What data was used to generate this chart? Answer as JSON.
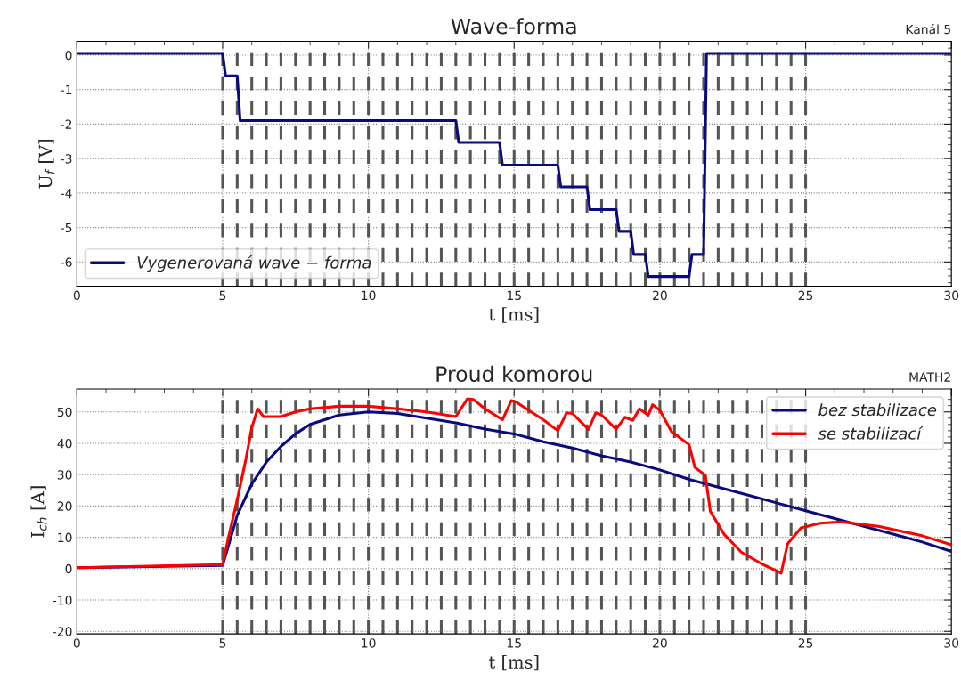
{
  "chart_data": [
    {
      "type": "line",
      "title": "Wave-forma",
      "xlabel": "t [ms]",
      "ylabel": "U$_{f}$ [V]",
      "annotations": [
        "Kanál 5"
      ],
      "xlim": [
        0,
        30
      ],
      "xticks": [
        0,
        5,
        10,
        15,
        20,
        25,
        30
      ],
      "ylim": [
        -6.7,
        0.4
      ],
      "yticks": [
        -6,
        -5,
        -4,
        -3,
        -2,
        -1,
        0
      ],
      "grid": true,
      "legend": "bottom left",
      "series": [
        {
          "name": "Vygenerovaná wave − forma",
          "color": "#0a0a80",
          "x": [
            0,
            5.0,
            5.1,
            5.5,
            5.6,
            13.0,
            13.1,
            14.5,
            14.6,
            16.5,
            16.6,
            17.5,
            17.6,
            18.5,
            18.6,
            19.0,
            19.1,
            19.5,
            19.6,
            21.0,
            21.1,
            21.5,
            21.6,
            30
          ],
          "values": [
            0.05,
            0.05,
            -0.6,
            -0.6,
            -1.9,
            -1.9,
            -2.53,
            -2.53,
            -3.19,
            -3.19,
            -3.82,
            -3.82,
            -4.48,
            -4.48,
            -5.11,
            -5.11,
            -5.78,
            -5.78,
            -6.42,
            -6.42,
            -5.78,
            -5.78,
            0.05,
            0.05
          ]
        }
      ],
      "ref_lines": [
        {
          "axis": "x",
          "value": 5.0,
          "color": "#555555",
          "line_style": "dashed"
        },
        {
          "axis": "x",
          "value": 5.5,
          "color": "#555555",
          "line_style": "dashed"
        },
        {
          "axis": "x",
          "value": 6.0,
          "color": "#555555",
          "line_style": "dashed"
        },
        {
          "axis": "x",
          "value": 6.5,
          "color": "#555555",
          "line_style": "dashed"
        },
        {
          "axis": "x",
          "value": 7.0,
          "color": "#555555",
          "line_style": "dashed"
        },
        {
          "axis": "x",
          "value": 7.5,
          "color": "#555555",
          "line_style": "dashed"
        },
        {
          "axis": "x",
          "value": 8.0,
          "color": "#555555",
          "line_style": "dashed"
        },
        {
          "axis": "x",
          "value": 8.5,
          "color": "#555555",
          "line_style": "dashed"
        },
        {
          "axis": "x",
          "value": 9.0,
          "color": "#555555",
          "line_style": "dashed"
        },
        {
          "axis": "x",
          "value": 9.5,
          "color": "#555555",
          "line_style": "dashed"
        },
        {
          "axis": "x",
          "value": 10.0,
          "color": "#555555",
          "line_style": "dashed"
        },
        {
          "axis": "x",
          "value": 10.5,
          "color": "#555555",
          "line_style": "dashed"
        },
        {
          "axis": "x",
          "value": 11.0,
          "color": "#555555",
          "line_style": "dashed"
        },
        {
          "axis": "x",
          "value": 11.5,
          "color": "#555555",
          "line_style": "dashed"
        },
        {
          "axis": "x",
          "value": 12.0,
          "color": "#555555",
          "line_style": "dashed"
        },
        {
          "axis": "x",
          "value": 12.5,
          "color": "#555555",
          "line_style": "dashed"
        },
        {
          "axis": "x",
          "value": 13.0,
          "color": "#555555",
          "line_style": "dashed"
        },
        {
          "axis": "x",
          "value": 13.5,
          "color": "#555555",
          "line_style": "dashed"
        },
        {
          "axis": "x",
          "value": 14.0,
          "color": "#555555",
          "line_style": "dashed"
        },
        {
          "axis": "x",
          "value": 14.5,
          "color": "#555555",
          "line_style": "dashed"
        },
        {
          "axis": "x",
          "value": 15.0,
          "color": "#555555",
          "line_style": "dashed"
        },
        {
          "axis": "x",
          "value": 15.5,
          "color": "#555555",
          "line_style": "dashed"
        },
        {
          "axis": "x",
          "value": 16.0,
          "color": "#555555",
          "line_style": "dashed"
        },
        {
          "axis": "x",
          "value": 16.5,
          "color": "#555555",
          "line_style": "dashed"
        },
        {
          "axis": "x",
          "value": 17.0,
          "color": "#555555",
          "line_style": "dashed"
        },
        {
          "axis": "x",
          "value": 17.5,
          "color": "#555555",
          "line_style": "dashed"
        },
        {
          "axis": "x",
          "value": 18.0,
          "color": "#555555",
          "line_style": "dashed"
        },
        {
          "axis": "x",
          "value": 18.5,
          "color": "#555555",
          "line_style": "dashed"
        },
        {
          "axis": "x",
          "value": 19.0,
          "color": "#555555",
          "line_style": "dashed"
        },
        {
          "axis": "x",
          "value": 19.5,
          "color": "#555555",
          "line_style": "dashed"
        },
        {
          "axis": "x",
          "value": 20.0,
          "color": "#555555",
          "line_style": "dashed"
        },
        {
          "axis": "x",
          "value": 20.5,
          "color": "#555555",
          "line_style": "dashed"
        },
        {
          "axis": "x",
          "value": 21.0,
          "color": "#555555",
          "line_style": "dashed"
        },
        {
          "axis": "x",
          "value": 21.5,
          "color": "#555555",
          "line_style": "dashed"
        },
        {
          "axis": "x",
          "value": 22.0,
          "color": "#555555",
          "line_style": "dashed"
        },
        {
          "axis": "x",
          "value": 22.5,
          "color": "#555555",
          "line_style": "dashed"
        },
        {
          "axis": "x",
          "value": 23.0,
          "color": "#555555",
          "line_style": "dashed"
        },
        {
          "axis": "x",
          "value": 23.5,
          "color": "#555555",
          "line_style": "dashed"
        },
        {
          "axis": "x",
          "value": 24.0,
          "color": "#555555",
          "line_style": "dashed"
        },
        {
          "axis": "x",
          "value": 24.5,
          "color": "#555555",
          "line_style": "dashed"
        },
        {
          "axis": "x",
          "value": 25.0,
          "color": "#555555",
          "line_style": "dashed"
        }
      ]
    },
    {
      "type": "line",
      "title": "Proud komorou",
      "xlabel": "t [ms]",
      "ylabel": "I$_{ch}$ [A]",
      "annotations": [
        "MATH2"
      ],
      "xlim": [
        0,
        30
      ],
      "xticks": [
        0,
        5,
        10,
        15,
        20,
        25,
        30
      ],
      "ylim": [
        -20.8,
        57.3
      ],
      "yticks": [
        -20,
        -10,
        0,
        10,
        20,
        30,
        40,
        50
      ],
      "grid": true,
      "legend": "top right",
      "series": [
        {
          "name": "bez stabilizace",
          "color": "#0a0a80",
          "x": [
            0,
            5,
            5.5,
            6,
            6.5,
            7,
            7.5,
            8,
            9,
            10,
            11,
            12,
            13,
            14,
            15,
            16,
            17,
            18,
            19,
            20,
            21,
            22,
            23,
            24,
            25,
            26,
            27,
            28,
            29,
            30
          ],
          "values": [
            0.3,
            1,
            17,
            27,
            34,
            39,
            43,
            46,
            49,
            50,
            49.5,
            48,
            46.5,
            44.5,
            43,
            40.5,
            38.5,
            36,
            34,
            31.5,
            28.5,
            26,
            23.5,
            21,
            18.5,
            16,
            13.5,
            11,
            8.5,
            5.5
          ]
        },
        {
          "name": "se stabilizací",
          "color": "#ff0000",
          "x": [
            0,
            5,
            5.2,
            5.5,
            5.8,
            6.0,
            6.2,
            6.4,
            7,
            7.5,
            8,
            9,
            10,
            11,
            12,
            13.0,
            13.4,
            13.6,
            14,
            14.6,
            14.9,
            15.1,
            15.5,
            16,
            16.5,
            16.8,
            17.0,
            17.55,
            17.8,
            18.0,
            18.5,
            18.8,
            19.07,
            19.3,
            19.6,
            19.75,
            20.0,
            20.4,
            21.0,
            21.2,
            21.56,
            21.73,
            22.2,
            22.8,
            23.5,
            24.16,
            24.38,
            24.84,
            25.5,
            26.2,
            27.5,
            29,
            30
          ],
          "values": [
            0.3,
            1.3,
            10,
            22,
            35,
            45,
            51,
            48.5,
            48.5,
            50,
            51,
            51.8,
            51.8,
            51,
            50,
            48.5,
            54.2,
            54,
            51,
            47.5,
            53.6,
            53,
            50.5,
            47.5,
            44,
            49.7,
            49.5,
            44.4,
            49.7,
            49,
            44.5,
            48.3,
            47.3,
            51,
            48.9,
            52.3,
            50.5,
            43.7,
            39.6,
            32.3,
            29.8,
            18.3,
            11,
            5.2,
            1.5,
            -1.4,
            7.9,
            13,
            14.5,
            14.9,
            13.5,
            10.5,
            7.6
          ]
        }
      ],
      "ref_lines": [
        {
          "axis": "x",
          "value": 5.0,
          "color": "#555555",
          "line_style": "dashed"
        },
        {
          "axis": "x",
          "value": 5.5,
          "color": "#555555",
          "line_style": "dashed"
        },
        {
          "axis": "x",
          "value": 6.0,
          "color": "#555555",
          "line_style": "dashed"
        },
        {
          "axis": "x",
          "value": 6.5,
          "color": "#555555",
          "line_style": "dashed"
        },
        {
          "axis": "x",
          "value": 7.0,
          "color": "#555555",
          "line_style": "dashed"
        },
        {
          "axis": "x",
          "value": 7.5,
          "color": "#555555",
          "line_style": "dashed"
        },
        {
          "axis": "x",
          "value": 8.0,
          "color": "#555555",
          "line_style": "dashed"
        },
        {
          "axis": "x",
          "value": 8.5,
          "color": "#555555",
          "line_style": "dashed"
        },
        {
          "axis": "x",
          "value": 9.0,
          "color": "#555555",
          "line_style": "dashed"
        },
        {
          "axis": "x",
          "value": 9.5,
          "color": "#555555",
          "line_style": "dashed"
        },
        {
          "axis": "x",
          "value": 10.0,
          "color": "#555555",
          "line_style": "dashed"
        },
        {
          "axis": "x",
          "value": 10.5,
          "color": "#555555",
          "line_style": "dashed"
        },
        {
          "axis": "x",
          "value": 11.0,
          "color": "#555555",
          "line_style": "dashed"
        },
        {
          "axis": "x",
          "value": 11.5,
          "color": "#555555",
          "line_style": "dashed"
        },
        {
          "axis": "x",
          "value": 12.0,
          "color": "#555555",
          "line_style": "dashed"
        },
        {
          "axis": "x",
          "value": 12.5,
          "color": "#555555",
          "line_style": "dashed"
        },
        {
          "axis": "x",
          "value": 13.0,
          "color": "#555555",
          "line_style": "dashed"
        },
        {
          "axis": "x",
          "value": 13.5,
          "color": "#555555",
          "line_style": "dashed"
        },
        {
          "axis": "x",
          "value": 14.0,
          "color": "#555555",
          "line_style": "dashed"
        },
        {
          "axis": "x",
          "value": 14.5,
          "color": "#555555",
          "line_style": "dashed"
        },
        {
          "axis": "x",
          "value": 15.0,
          "color": "#555555",
          "line_style": "dashed"
        },
        {
          "axis": "x",
          "value": 15.5,
          "color": "#555555",
          "line_style": "dashed"
        },
        {
          "axis": "x",
          "value": 16.0,
          "color": "#555555",
          "line_style": "dashed"
        },
        {
          "axis": "x",
          "value": 16.5,
          "color": "#555555",
          "line_style": "dashed"
        },
        {
          "axis": "x",
          "value": 17.0,
          "color": "#555555",
          "line_style": "dashed"
        },
        {
          "axis": "x",
          "value": 17.5,
          "color": "#555555",
          "line_style": "dashed"
        },
        {
          "axis": "x",
          "value": 18.0,
          "color": "#555555",
          "line_style": "dashed"
        },
        {
          "axis": "x",
          "value": 18.5,
          "color": "#555555",
          "line_style": "dashed"
        },
        {
          "axis": "x",
          "value": 19.0,
          "color": "#555555",
          "line_style": "dashed"
        },
        {
          "axis": "x",
          "value": 19.5,
          "color": "#555555",
          "line_style": "dashed"
        },
        {
          "axis": "x",
          "value": 20.0,
          "color": "#555555",
          "line_style": "dashed"
        },
        {
          "axis": "x",
          "value": 20.5,
          "color": "#555555",
          "line_style": "dashed"
        },
        {
          "axis": "x",
          "value": 21.0,
          "color": "#555555",
          "line_style": "dashed"
        },
        {
          "axis": "x",
          "value": 21.5,
          "color": "#555555",
          "line_style": "dashed"
        },
        {
          "axis": "x",
          "value": 22.0,
          "color": "#555555",
          "line_style": "dashed"
        },
        {
          "axis": "x",
          "value": 22.5,
          "color": "#555555",
          "line_style": "dashed"
        },
        {
          "axis": "x",
          "value": 23.0,
          "color": "#555555",
          "line_style": "dashed"
        },
        {
          "axis": "x",
          "value": 23.5,
          "color": "#555555",
          "line_style": "dashed"
        },
        {
          "axis": "x",
          "value": 24.0,
          "color": "#555555",
          "line_style": "dashed"
        },
        {
          "axis": "x",
          "value": 24.5,
          "color": "#555555",
          "line_style": "dashed"
        },
        {
          "axis": "x",
          "value": 25.0,
          "color": "#555555",
          "line_style": "dashed"
        }
      ]
    }
  ]
}
